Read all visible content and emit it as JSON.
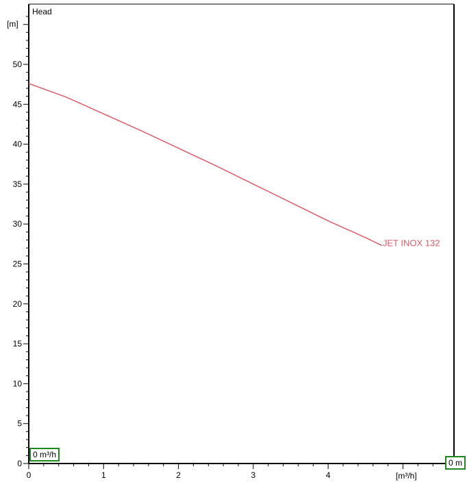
{
  "chart_data": {
    "type": "line",
    "ylabel": "Head",
    "yunit": "[m]",
    "xunit": "[m³/h]",
    "xlim": [
      0,
      5.7
    ],
    "ylim": [
      0,
      55
    ],
    "x_ticks": [
      0,
      1,
      2,
      3,
      4
    ],
    "y_ticks": [
      0,
      5,
      10,
      15,
      20,
      25,
      30,
      35,
      40,
      45,
      50
    ],
    "grid": false,
    "series": [
      {
        "name": "JET INOX 132",
        "color": "#e05a64",
        "x": [
          0,
          0.5,
          1.0,
          1.5,
          2.0,
          2.5,
          3.0,
          3.5,
          4.0,
          4.5,
          4.72
        ],
        "y": [
          47.6,
          45.9,
          43.8,
          41.7,
          39.5,
          37.3,
          35.0,
          32.7,
          30.4,
          28.3,
          27.3
        ]
      }
    ]
  },
  "readouts": {
    "flow": "0 m³/h",
    "head": "0 m"
  },
  "colors": {
    "readout_border": "#1a8a1a",
    "axis": "#000000"
  }
}
